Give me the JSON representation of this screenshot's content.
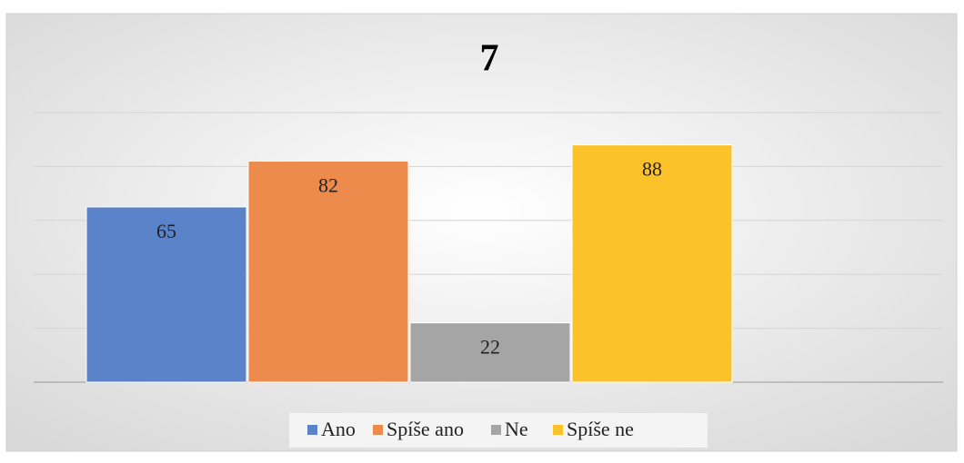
{
  "chart_data": {
    "type": "bar",
    "title": "7",
    "categories": [
      null
    ],
    "series": [
      {
        "name": "Ano",
        "color": "#5b83c9",
        "values": [
          65
        ]
      },
      {
        "name": "Spíše ano",
        "color": "#ed8b4c",
        "values": [
          82
        ]
      },
      {
        "name": "Ne",
        "color": "#a5a5a5",
        "values": [
          22
        ]
      },
      {
        "name": "Spíše ne",
        "color": "#fcc22a",
        "values": [
          88
        ]
      }
    ],
    "ylim": [
      0,
      100
    ],
    "yticks": [
      0,
      20,
      40,
      60,
      80,
      100
    ],
    "grid": true,
    "legend": "bottom"
  }
}
